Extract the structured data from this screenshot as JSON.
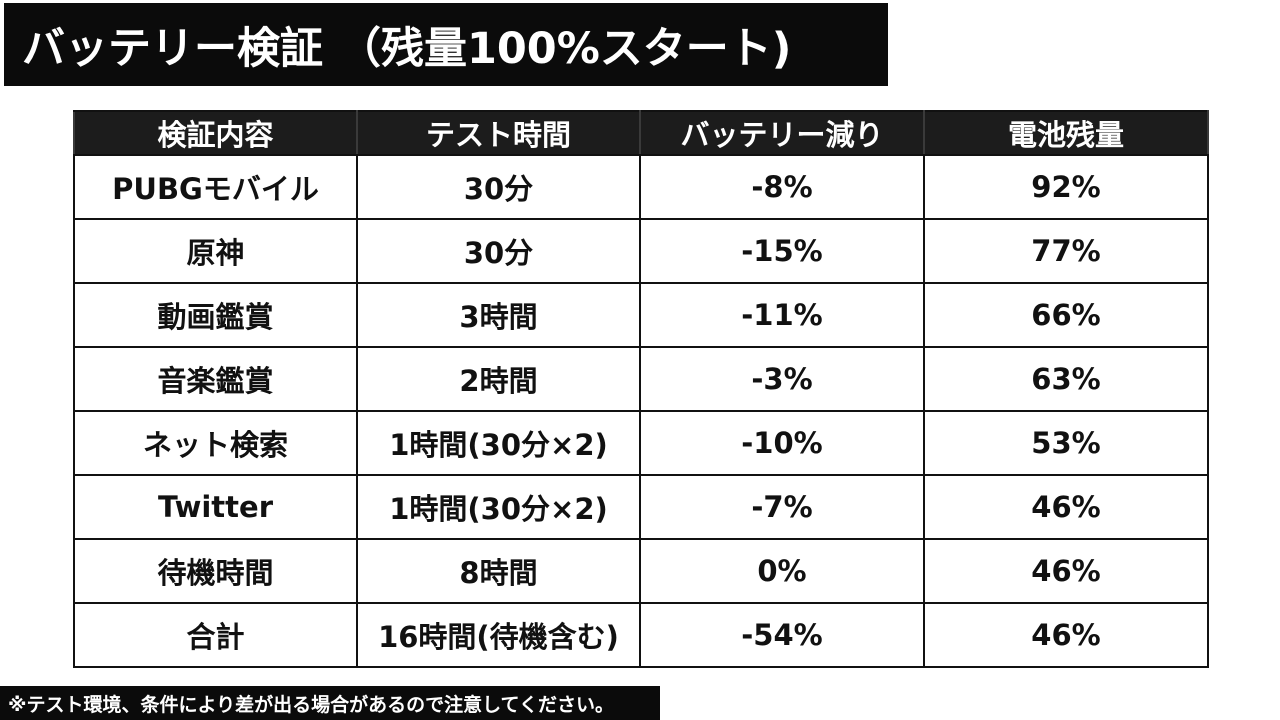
{
  "title": "バッテリー検証 （残量100%スタート)",
  "table": {
    "headers": [
      "検証内容",
      "テスト時間",
      "バッテリー減り",
      "電池残量"
    ],
    "rows": [
      [
        "PUBGモバイル",
        "30分",
        "-8%",
        "92%"
      ],
      [
        "原神",
        "30分",
        "-15%",
        "77%"
      ],
      [
        "動画鑑賞",
        "3時間",
        "-11%",
        "66%"
      ],
      [
        "音楽鑑賞",
        "2時間",
        "-3%",
        "63%"
      ],
      [
        "ネット検索",
        "1時間(30分×2)",
        "-10%",
        "53%"
      ],
      [
        "Twitter",
        "1時間(30分×2)",
        "-7%",
        "46%"
      ],
      [
        "待機時間",
        "8時間",
        "0%",
        "46%"
      ],
      [
        "合計",
        "16時間(待機含む)",
        "-54%",
        "46%"
      ]
    ]
  },
  "footnote": "※テスト環境、条件により差が出る場合があるので注意してください。",
  "colors": {
    "header_bg": "#1c1c1c",
    "title_bg": "#0b0b0b",
    "text": "#111111",
    "background": "#ffffff"
  }
}
